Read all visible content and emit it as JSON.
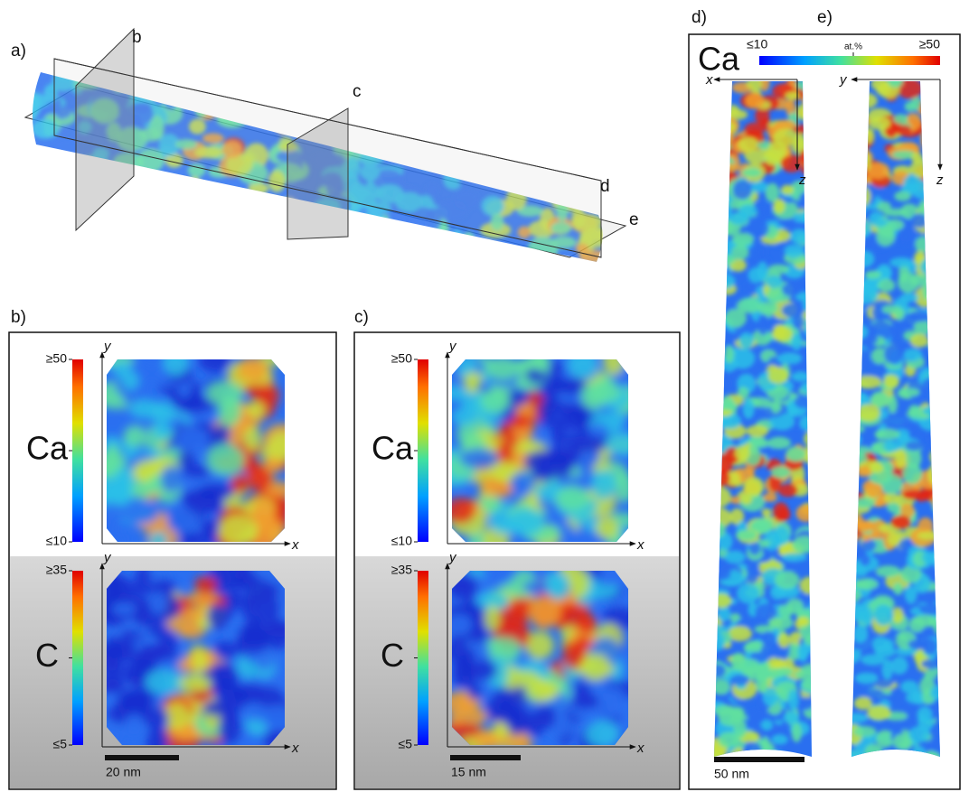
{
  "panel_a": {
    "label": "a)",
    "planes": [
      "b",
      "c",
      "d",
      "e"
    ]
  },
  "panel_b": {
    "label": "b)",
    "maps": [
      {
        "element": "Ca",
        "max": "≥50",
        "min": "≤10",
        "x_axis": "x",
        "y_axis": "y"
      },
      {
        "element": "C",
        "max": "≥35",
        "min": "≤5",
        "x_axis": "x",
        "y_axis": "y"
      }
    ],
    "scale_bar": "20 nm"
  },
  "panel_c": {
    "label": "c)",
    "maps": [
      {
        "element": "Ca",
        "max": "≥50",
        "min": "≤10",
        "x_axis": "x",
        "y_axis": "y"
      },
      {
        "element": "C",
        "max": "≥35",
        "min": "≤5",
        "x_axis": "x",
        "y_axis": "y"
      }
    ],
    "scale_bar": "15 nm"
  },
  "panel_de": {
    "labels": [
      "d)",
      "e)"
    ],
    "element": "Ca",
    "min": "≤10",
    "unit": "at.%",
    "max": "≥50",
    "axes_d": [
      "x",
      "z"
    ],
    "axes_e": [
      "y",
      "z"
    ],
    "scale_bar": "50 nm"
  }
}
